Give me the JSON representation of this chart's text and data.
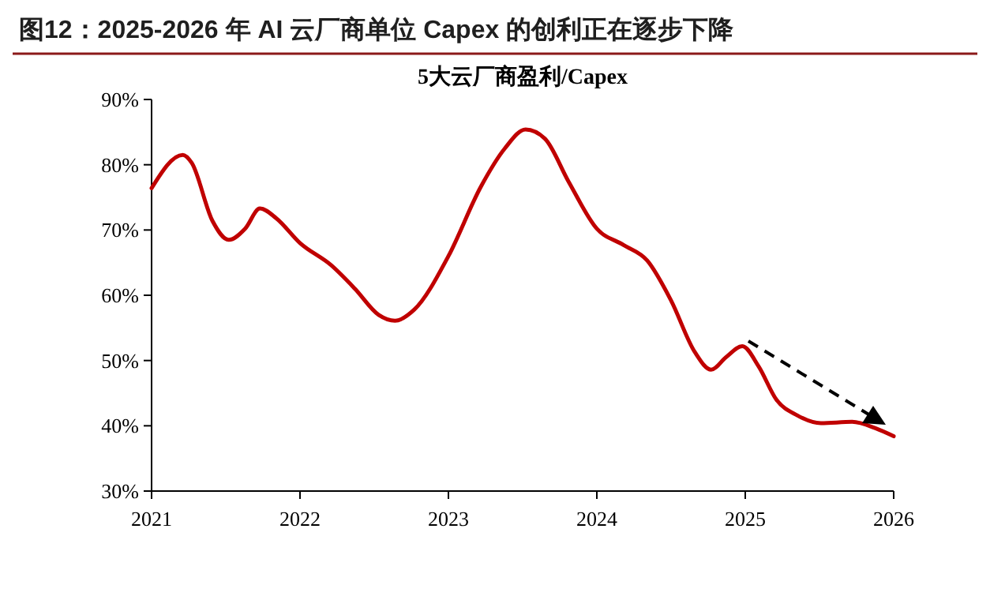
{
  "chart_data": {
    "type": "line",
    "title": "图12：2025-2026 年 AI 云厂商单位 Capex 的创利正在逐步下降",
    "subtitle": "5大云厂商盈利/Capex",
    "x": [
      2021.0,
      2021.21,
      2021.27,
      2021.41,
      2021.52,
      2021.63,
      2021.73,
      2021.84,
      2022.0,
      2022.21,
      2022.37,
      2022.53,
      2022.64,
      2022.77,
      2023.0,
      2023.22,
      2023.38,
      2023.52,
      2023.65,
      2023.81,
      2024.0,
      2024.18,
      2024.34,
      2024.5,
      2024.66,
      2024.77,
      2024.87,
      2024.98,
      2025.09,
      2025.21,
      2025.35,
      2025.51,
      2025.72,
      2025.88,
      2026.0
    ],
    "series": [
      {
        "color": "#c00000",
        "values": [
          76.4,
          81.5,
          80.3,
          71.4,
          68.5,
          70.2,
          73.3,
          71.8,
          68,
          64.6,
          61,
          57,
          56.1,
          57.8,
          66,
          76.7,
          82.5,
          85.4,
          84,
          77.4,
          70.2,
          67.7,
          65.3,
          59.2,
          51.3,
          48.6,
          50.5,
          52.2,
          49.1,
          44,
          41.6,
          40.4,
          40.6,
          39.6,
          38.4
        ]
      }
    ],
    "xlim": [
      2021,
      2026
    ],
    "xticks": [
      2021,
      2022,
      2023,
      2024,
      2025,
      2026
    ],
    "ylim": [
      30,
      90
    ],
    "yticks": [
      {
        "value": 30,
        "label": "30%"
      },
      {
        "value": 40,
        "label": "40%"
      },
      {
        "value": 50,
        "label": "50%"
      },
      {
        "value": 60,
        "label": "60%"
      },
      {
        "value": 70,
        "label": "70%"
      },
      {
        "value": 80,
        "label": "80%"
      },
      {
        "value": 90,
        "label": "90%"
      }
    ],
    "grid": false,
    "marker": "none",
    "line_style": "solid"
  }
}
